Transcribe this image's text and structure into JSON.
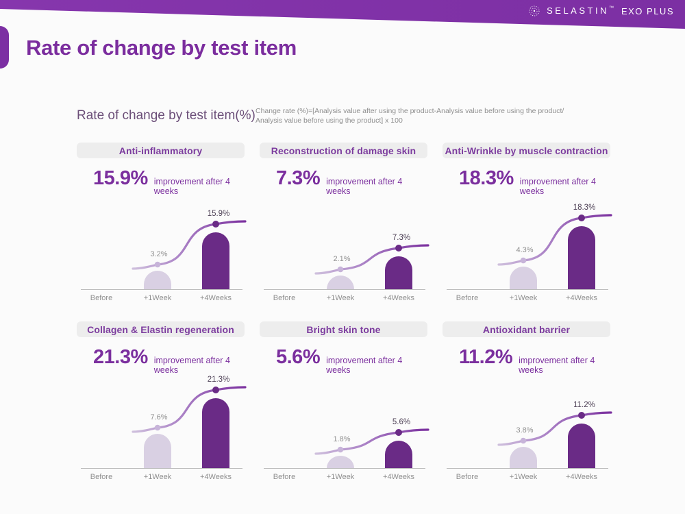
{
  "page": {
    "background": "#fbfbfb",
    "title": "Rate of change by test item",
    "section_title": "Rate of change by test item(%)",
    "formula_line1": "Change rate (%)=[Analysis value after using the product-Analysis value before using the product/",
    "formula_line2": "Analysis value before using the product] x 100"
  },
  "brand": {
    "name": "SELASTIN",
    "tm": "™",
    "product": "EXO PLUS",
    "icon": "starburst-icon"
  },
  "colors": {
    "band": "#7c2fa3",
    "accent": "#7b2f9e",
    "bar_light": "#d9d0e3",
    "bar_dark": "#6a2b86",
    "line_light": "#cfc0dd",
    "line_mid": "#a97fc5",
    "line_dark": "#7a2f9e",
    "label_gray": "#8f8f8f",
    "value_dark": "#4e4156",
    "dot_light": "#c7b4d9",
    "header_bg": "#ededed",
    "header_text": "#7c3c9e",
    "axis_gray": "#bdbdbd"
  },
  "chart_data": [
    {
      "type": "bar",
      "title": "Anti-inflammatory",
      "headline": "15.9%",
      "note": "improvement after 4 weeks",
      "categories": [
        "Before",
        "+1Week",
        "+4Weeks"
      ],
      "values": [
        0,
        3.2,
        15.9
      ],
      "point_labels": [
        "",
        "3.2%",
        "15.9%"
      ],
      "unit": "%",
      "grid": false,
      "legend": "none"
    },
    {
      "type": "bar",
      "title": "Reconstruction of damage skin",
      "headline": "7.3%",
      "note": "improvement after 4 weeks",
      "categories": [
        "Before",
        "+1Week",
        "+4Weeks"
      ],
      "values": [
        0,
        2.1,
        7.3
      ],
      "point_labels": [
        "",
        "2.1%",
        "7.3%"
      ],
      "unit": "%",
      "grid": false,
      "legend": "none"
    },
    {
      "type": "bar",
      "title": "Anti-Wrinkle by muscle contraction",
      "headline": "18.3%",
      "note": "improvement after 4 weeks",
      "categories": [
        "Before",
        "+1Week",
        "+4Weeks"
      ],
      "values": [
        0,
        4.3,
        18.3
      ],
      "point_labels": [
        "",
        "4.3%",
        "18.3%"
      ],
      "unit": "%",
      "grid": false,
      "legend": "none"
    },
    {
      "type": "bar",
      "title": "Collagen & Elastin regeneration",
      "headline": "21.3%",
      "note": "improvement after 4 weeks",
      "categories": [
        "Before",
        "+1Week",
        "+4Weeks"
      ],
      "values": [
        0,
        7.6,
        21.3
      ],
      "point_labels": [
        "",
        "7.6%",
        "21.3%"
      ],
      "unit": "%",
      "grid": false,
      "legend": "none"
    },
    {
      "type": "bar",
      "title": "Bright skin tone",
      "headline": "5.6%",
      "note": "improvement after 4 weeks",
      "categories": [
        "Before",
        "+1Week",
        "+4Weeks"
      ],
      "values": [
        0,
        1.8,
        5.6
      ],
      "point_labels": [
        "",
        "1.8%",
        "5.6%"
      ],
      "unit": "%",
      "grid": false,
      "legend": "none"
    },
    {
      "type": "bar",
      "title": "Antioxidant barrier",
      "headline": "11.2%",
      "note": "improvement after 4 weeks",
      "categories": [
        "Before",
        "+1Week",
        "+4Weeks"
      ],
      "values": [
        0,
        3.8,
        11.2
      ],
      "point_labels": [
        "",
        "3.8%",
        "11.2%"
      ],
      "unit": "%",
      "grid": false,
      "legend": "none"
    }
  ]
}
